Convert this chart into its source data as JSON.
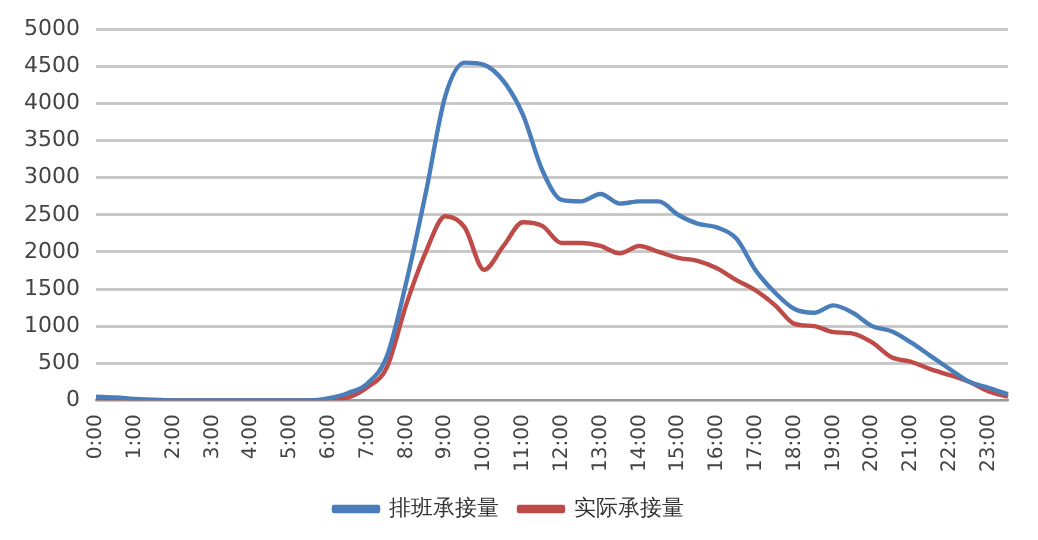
{
  "chart_data": {
    "type": "line",
    "categories": [
      "0:00",
      null,
      "1:00",
      null,
      "2:00",
      null,
      "3:00",
      null,
      "4:00",
      null,
      "5:00",
      null,
      "6:00",
      null,
      "7:00",
      null,
      "8:00",
      null,
      "9:00",
      null,
      "10:00",
      null,
      "11:00",
      null,
      "12:00",
      null,
      "13:00",
      null,
      "14:00",
      null,
      "15:00",
      null,
      "16:00",
      null,
      "17:00",
      null,
      "18:00",
      null,
      "19:00",
      null,
      "20:00",
      null,
      "21:00",
      null,
      "22:00",
      null,
      "23:00",
      null
    ],
    "series": [
      {
        "name": "排班承接量",
        "color": "#4a7ebb",
        "values": [
          50,
          40,
          20,
          10,
          0,
          0,
          0,
          0,
          0,
          0,
          0,
          0,
          30,
          100,
          230,
          600,
          1600,
          2800,
          4100,
          4550,
          4520,
          4300,
          3850,
          3100,
          2700,
          2680,
          2780,
          2650,
          2680,
          2680,
          2500,
          2380,
          2330,
          2180,
          1750,
          1450,
          1230,
          1180,
          1280,
          1180,
          1000,
          930,
          780,
          600,
          420,
          250,
          170,
          80
        ]
      },
      {
        "name": "实际承接量",
        "color": "#be4b48",
        "values": [
          30,
          20,
          10,
          0,
          0,
          0,
          0,
          0,
          0,
          0,
          0,
          0,
          10,
          40,
          180,
          450,
          1300,
          2000,
          2480,
          2330,
          1760,
          2080,
          2400,
          2350,
          2120,
          2120,
          2080,
          1980,
          2080,
          2000,
          1920,
          1880,
          1780,
          1620,
          1480,
          1280,
          1030,
          1000,
          920,
          900,
          780,
          580,
          520,
          420,
          340,
          250,
          120,
          50
        ]
      }
    ],
    "ylim": [
      0,
      5000
    ],
    "yticks": [
      0,
      500,
      1000,
      1500,
      2000,
      2500,
      3000,
      3500,
      4000,
      4500,
      5000
    ],
    "grid": "y",
    "legend": "bottom",
    "marker": "none",
    "line_style": "solid"
  }
}
